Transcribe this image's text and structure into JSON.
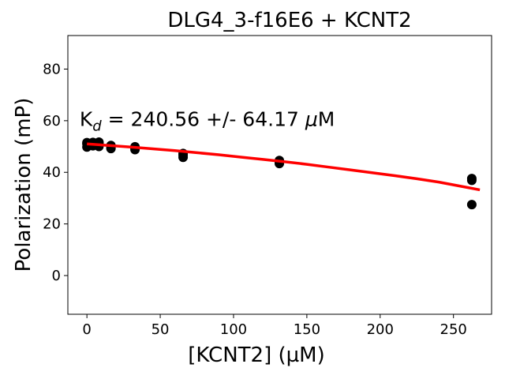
{
  "chart_data": {
    "type": "scatter",
    "title": "DLG4_3-f16E6 + KCNT2",
    "xlabel": "[KCNT2] (µM)",
    "ylabel": "Polarization (mP)",
    "xlim": [
      -13,
      276
    ],
    "ylim": [
      -15,
      93
    ],
    "xticks": [
      0,
      50,
      100,
      150,
      200,
      250
    ],
    "yticks": [
      0,
      20,
      40,
      60,
      80
    ],
    "grid": false,
    "annotation": {
      "prefix": "K",
      "subscript": "d",
      "text": " = 240.56 +/- 64.17 ",
      "unit_greek": "μ",
      "unit": "M",
      "anchor": [
        -5,
        58
      ]
    },
    "points": {
      "color": "#000000",
      "x": [
        0,
        0,
        0,
        4.1,
        4.1,
        4.1,
        8.2,
        8.2,
        8.2,
        16.4,
        16.4,
        16.4,
        32.8,
        32.8,
        32.8,
        65.6,
        65.6,
        65.6,
        131.25,
        131.25,
        131.25,
        262.5,
        262.5,
        262.5
      ],
      "y": [
        51.0,
        49.8,
        51.5,
        51.2,
        50.3,
        51.6,
        50.0,
        51.2,
        51.7,
        49.2,
        50.4,
        49.6,
        48.8,
        49.4,
        49.9,
        45.8,
        46.7,
        47.3,
        43.4,
        43.9,
        44.6,
        27.5,
        36.9,
        37.6
      ]
    },
    "fit_curve": {
      "color": "#ff0000",
      "x": [
        0,
        15,
        30,
        45,
        60,
        75,
        90,
        105,
        120,
        135,
        150,
        165,
        180,
        195,
        210,
        225,
        240,
        255,
        268
      ],
      "y": [
        51.0,
        50.4,
        49.8,
        49.1,
        48.4,
        47.6,
        46.8,
        45.9,
        45.0,
        44.1,
        43.1,
        42.0,
        40.9,
        39.8,
        38.7,
        37.5,
        36.2,
        34.6,
        33.2
      ]
    }
  }
}
